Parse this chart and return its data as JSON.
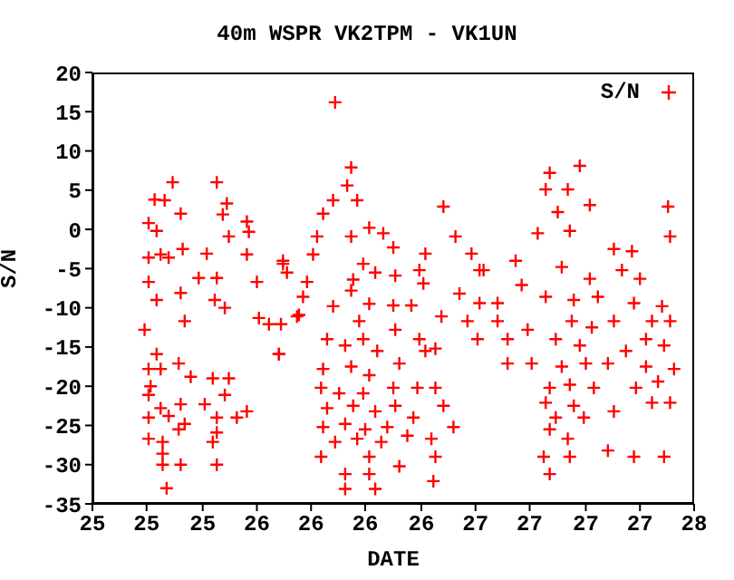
{
  "chart_data": {
    "type": "scatter",
    "title": "40m WSPR VK2TPM - VK1UN",
    "xlabel": "DATE",
    "ylabel": "S/N",
    "legend": "top right",
    "marker": "cross",
    "xlim": [
      24.7,
      27.7
    ],
    "xticks": [
      {
        "value": 24.7,
        "label": "25"
      },
      {
        "value": 24.97,
        "label": "25"
      },
      {
        "value": 25.25,
        "label": "25"
      },
      {
        "value": 25.52,
        "label": "26"
      },
      {
        "value": 25.79,
        "label": "26"
      },
      {
        "value": 26.06,
        "label": "26"
      },
      {
        "value": 26.34,
        "label": "26"
      },
      {
        "value": 26.61,
        "label": "27"
      },
      {
        "value": 26.88,
        "label": "27"
      },
      {
        "value": 27.16,
        "label": "27"
      },
      {
        "value": 27.43,
        "label": "27"
      },
      {
        "value": 27.7,
        "label": "28"
      }
    ],
    "ylim": [
      -35,
      20
    ],
    "yticks": [
      -35,
      -30,
      -25,
      -20,
      -15,
      -10,
      -5,
      0,
      5,
      10,
      15,
      20
    ],
    "series": [
      {
        "name": "S/N",
        "color": "#ff0000",
        "x": [
          25.1,
          25.32,
          25.01,
          25.06,
          25.14,
          24.98,
          25.02,
          25.35,
          25.37,
          25.47,
          25.48,
          25.38,
          25.47,
          24.98,
          25.04,
          25.08,
          25.15,
          25.27,
          24.98,
          25.32,
          25.23,
          25.52,
          25.65,
          25.67,
          25.02,
          25.14,
          25.31,
          25.36,
          25.53,
          25.58,
          25.64,
          25.73,
          25.75,
          24.96,
          25.16,
          25.63,
          25.02,
          24.98,
          25.04,
          25.13,
          25.19,
          25.3,
          25.38,
          24.99,
          24.98,
          25.36,
          25.04,
          25.14,
          25.26,
          24.98,
          25.08,
          25.16,
          25.32,
          25.42,
          25.47,
          24.98,
          25.05,
          25.13,
          25.32,
          25.3,
          25.05,
          25.05,
          25.14,
          25.32,
          25.07,
          25.91,
          25.99,
          25.97,
          25.9,
          25.85,
          26.02,
          26.45,
          25.82,
          25.99,
          26.08,
          26.15,
          26.2,
          26.51,
          26.36,
          26.59,
          25.8,
          25.65,
          26.05,
          26.11,
          26.21,
          26.33,
          26.0,
          25.77,
          26.35,
          26.53,
          26.63,
          25.9,
          25.99,
          26.08,
          26.2,
          26.29,
          25.72,
          26.44,
          26.57,
          26.72,
          26.03,
          26.21,
          25.63,
          25.87,
          25.96,
          26.05,
          26.12,
          26.33,
          26.41,
          26.62,
          25.85,
          25.99,
          26.08,
          26.23,
          26.36,
          25.84,
          25.93,
          26.05,
          26.2,
          26.32,
          26.41,
          25.87,
          26.0,
          26.11,
          26.21,
          26.45,
          25.85,
          25.96,
          26.06,
          26.17,
          26.3,
          26.5,
          25.91,
          26.02,
          26.14,
          26.27,
          26.39,
          25.84,
          26.08,
          26.23,
          26.41,
          25.96,
          26.08,
          26.4,
          25.96,
          26.11,
          27.13,
          26.98,
          26.96,
          27.07,
          27.18,
          27.57,
          27.02,
          26.92,
          27.08,
          27.58,
          27.3,
          27.39,
          26.81,
          27.04,
          27.18,
          27.34,
          27.43,
          26.65,
          26.84,
          26.63,
          26.72,
          26.96,
          27.1,
          27.22,
          27.4,
          27.54,
          27.09,
          27.19,
          27.3,
          27.49,
          27.58,
          26.77,
          26.87,
          27.01,
          27.13,
          27.36,
          27.46,
          27.55,
          26.89,
          27.04,
          27.16,
          27.27,
          27.46,
          27.6,
          26.98,
          27.08,
          27.2,
          27.41,
          27.52,
          26.96,
          27.1,
          27.49,
          27.58,
          27.01,
          27.15,
          27.3,
          26.98,
          27.07,
          27.27,
          27.4,
          27.55,
          26.95,
          27.08,
          26.98,
          26.77
        ],
        "values": [
          6,
          6,
          3.8,
          3.7,
          2,
          0.8,
          -0.2,
          1.9,
          3.3,
          1,
          -0.3,
          -0.9,
          -3.2,
          -3.6,
          -3.2,
          -3.6,
          -2.5,
          -3.1,
          -6.7,
          -6.2,
          -6.2,
          -6.7,
          -4.4,
          -5.5,
          -9,
          -8.1,
          -9,
          -10,
          -11.3,
          -12.1,
          -12.1,
          -10.9,
          -8.6,
          -12.8,
          -11.7,
          -15.9,
          -15.9,
          -17.8,
          -17.8,
          -17.1,
          -18.8,
          -19,
          -19,
          -20,
          -21.1,
          -21.1,
          -22.8,
          -22.3,
          -22.3,
          -24,
          -23.8,
          -24.8,
          -24,
          -24,
          -23.2,
          -26.7,
          -27.1,
          -25.5,
          -25.9,
          -27.1,
          -28.6,
          -30,
          -30,
          -30,
          -33,
          16.2,
          7.9,
          5.6,
          3.7,
          2,
          3.7,
          2.9,
          -0.9,
          -0.9,
          0.2,
          -0.5,
          -2.3,
          -0.9,
          -3.1,
          -3.1,
          -3.2,
          -4,
          -4.4,
          -5.5,
          -5.9,
          -5.2,
          -6.4,
          -6.7,
          -6.9,
          -8.2,
          -5.2,
          -9.8,
          -7.8,
          -9.5,
          -9.7,
          -9.7,
          -11.1,
          -11.1,
          -11.7,
          -11.7,
          -11.7,
          -12.8,
          -15.9,
          -14,
          -14.8,
          -14,
          -15.5,
          -14,
          -15.2,
          -14,
          -17.8,
          -17.5,
          -18.6,
          -17.1,
          -15.5,
          -20.2,
          -20.9,
          -20.9,
          -20.2,
          -20.2,
          -20.2,
          -22.8,
          -22.5,
          -23.2,
          -22.5,
          -22.5,
          -25.2,
          -24.8,
          -25.5,
          -25.2,
          -24,
          -25.2,
          -27.1,
          -26.7,
          -27.1,
          -26.3,
          -26.7,
          -29,
          -29,
          -30.2,
          -29,
          -31.2,
          -31.2,
          -32.1,
          -33.1,
          -33.1,
          8.1,
          7.2,
          5.1,
          5.1,
          3.1,
          2.9,
          2.2,
          -0.5,
          -0.2,
          -0.9,
          -2.5,
          -2.8,
          -4,
          -4.8,
          -6.3,
          -5.2,
          -6.3,
          -5.2,
          -7.1,
          -9.4,
          -9.4,
          -8.6,
          -9,
          -8.6,
          -9.4,
          -9.8,
          -11.7,
          -12.5,
          -11.7,
          -11.7,
          -11.7,
          -14,
          -12.8,
          -14,
          -14.8,
          -15.5,
          -14,
          -14.8,
          -17.1,
          -17.5,
          -17.1,
          -17.1,
          -17.5,
          -17.8,
          -20.2,
          -19.8,
          -20.2,
          -20.2,
          -19.4,
          -22.1,
          -22.5,
          -22.1,
          -22.1,
          -24,
          -24,
          -23.2,
          -25.5,
          -26.7,
          -28.2,
          -29,
          -29,
          -29,
          -29,
          -31.2,
          -17.1
        ]
      }
    ]
  }
}
